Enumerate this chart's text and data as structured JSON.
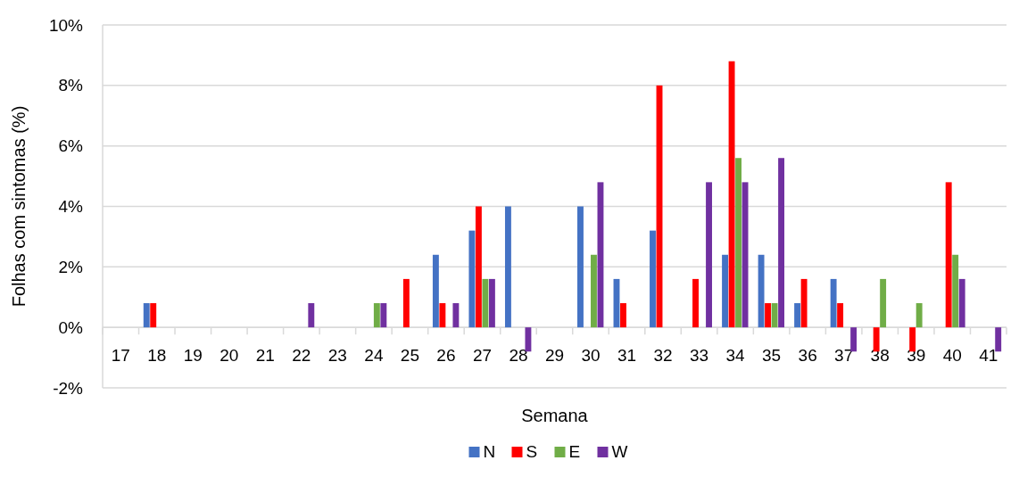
{
  "chart_data": {
    "type": "bar",
    "xlabel": "Semana",
    "ylabel": "Folhas com sintomas (%)",
    "categories": [
      "17",
      "18",
      "19",
      "20",
      "21",
      "22",
      "23",
      "24",
      "25",
      "26",
      "27",
      "28",
      "29",
      "30",
      "31",
      "32",
      "33",
      "34",
      "35",
      "36",
      "37",
      "38",
      "39",
      "40",
      "41"
    ],
    "series": [
      {
        "name": "N",
        "color": "#4472c4",
        "values": [
          0,
          0.8,
          0,
          0,
          0,
          0,
          0,
          0,
          0,
          2.4,
          3.2,
          4.0,
          0,
          4.0,
          1.6,
          3.2,
          0,
          2.4,
          2.4,
          0.8,
          1.6,
          0,
          0,
          0,
          0
        ]
      },
      {
        "name": "S",
        "color": "#ff0000",
        "values": [
          0,
          0.8,
          0,
          0,
          0,
          0,
          0,
          0,
          1.6,
          0.8,
          4.0,
          0,
          0,
          0,
          0.8,
          8.0,
          1.6,
          8.8,
          0.8,
          1.6,
          0.8,
          -0.8,
          -0.8,
          4.8,
          0
        ]
      },
      {
        "name": "E",
        "color": "#70ad47",
        "values": [
          0,
          0,
          0,
          0,
          0,
          0,
          0,
          0.8,
          0,
          0,
          1.6,
          0,
          0,
          2.4,
          0,
          0,
          0,
          5.6,
          0.8,
          0,
          0,
          1.6,
          0.8,
          2.4,
          0
        ]
      },
      {
        "name": "W",
        "color": "#7030a0",
        "values": [
          0,
          0,
          0,
          0,
          0,
          0.8,
          0,
          0.8,
          0,
          0.8,
          1.6,
          -0.8,
          0,
          4.8,
          0,
          0,
          4.8,
          4.8,
          5.6,
          0,
          -0.8,
          0,
          0,
          1.6,
          -0.8
        ]
      }
    ],
    "ylim": [
      -2,
      10
    ],
    "yticks": [
      {
        "value": -2,
        "label": "-2%"
      },
      {
        "value": 0,
        "label": "0%"
      },
      {
        "value": 2,
        "label": "2%"
      },
      {
        "value": 4,
        "label": "4%"
      },
      {
        "value": 6,
        "label": "6%"
      },
      {
        "value": 8,
        "label": "8%"
      },
      {
        "value": 10,
        "label": "10%"
      }
    ],
    "grid": "y",
    "legend": "bottom"
  }
}
